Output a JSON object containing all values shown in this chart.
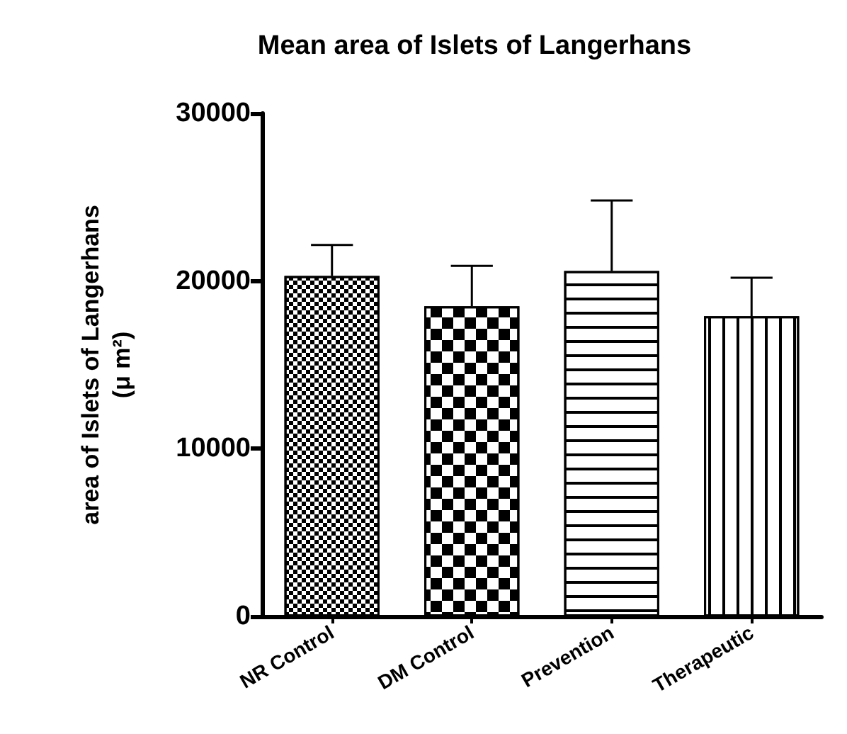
{
  "chart_data": {
    "type": "bar",
    "title": "Mean area of Islets of Langerhans",
    "ylabel": "area of Islets of Langerhans\n(μ m²)",
    "categories": [
      "NR Control",
      "DM Control",
      "Prevention",
      "Therapeutic"
    ],
    "values": [
      20300,
      18500,
      20600,
      17900
    ],
    "errors": [
      1850,
      2400,
      4200,
      2300
    ],
    "color": "#ffffff",
    "ylim": [
      0,
      30000
    ],
    "yticks": [
      0,
      10000,
      20000,
      30000
    ],
    "grid": false
  }
}
